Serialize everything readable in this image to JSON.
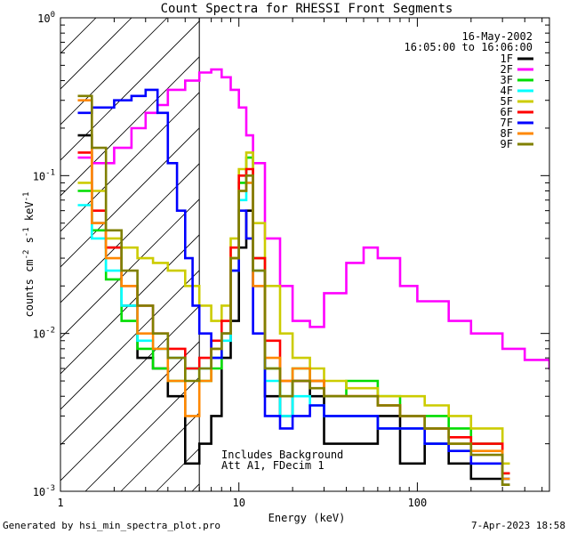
{
  "chart_data": {
    "type": "line",
    "title": "Count Spectra for RHESSI Front Segments",
    "xlabel": "Energy (keV)",
    "ylabel_parts": [
      "counts cm",
      "-2",
      " s",
      "-1",
      " keV",
      "-1"
    ],
    "x_scale": "log",
    "y_scale": "log",
    "xlim": [
      1,
      550
    ],
    "ylim": [
      0.001,
      1.0
    ],
    "x_ticks": [
      {
        "value": 1,
        "label": "1"
      },
      {
        "value": 10,
        "label": "10"
      },
      {
        "value": 100,
        "label": "100"
      }
    ],
    "y_ticks": [
      {
        "value": 1,
        "base": "10",
        "exp": "0"
      },
      {
        "value": 0.1,
        "base": "10",
        "exp": "-1"
      },
      {
        "value": 0.01,
        "base": "10",
        "exp": "-2"
      },
      {
        "value": 0.001,
        "base": "10",
        "exp": "-3"
      }
    ],
    "date": "16-May-2002",
    "time_range": "16:05:00 to 16:06:00",
    "attenuator_line_keV": 6,
    "annotations": [
      "Includes Background",
      "Att A1, FDecim 1"
    ],
    "series": [
      {
        "name": "1F",
        "color": "#000000",
        "values": [
          [
            1.25,
            0.18
          ],
          [
            1.5,
            0.05
          ],
          [
            1.8,
            0.035
          ],
          [
            2.2,
            0.015
          ],
          [
            2.7,
            0.007
          ],
          [
            3.3,
            0.006
          ],
          [
            4,
            0.004
          ],
          [
            5,
            0.0015
          ],
          [
            6,
            0.002
          ],
          [
            7,
            0.003
          ],
          [
            8,
            0.007
          ],
          [
            9,
            0.012
          ],
          [
            10,
            0.035
          ],
          [
            11,
            0.06
          ],
          [
            12,
            0.02
          ],
          [
            14,
            0.004
          ],
          [
            17,
            0.003
          ],
          [
            20,
            0.005
          ],
          [
            25,
            0.004
          ],
          [
            30,
            0.002
          ],
          [
            40,
            0.002
          ],
          [
            60,
            0.003
          ],
          [
            80,
            0.0015
          ],
          [
            110,
            0.002
          ],
          [
            150,
            0.0015
          ],
          [
            200,
            0.0012
          ],
          [
            300,
            0.0011
          ]
        ]
      },
      {
        "name": "2F",
        "color": "#ff00ff",
        "values": [
          [
            1.25,
            0.13
          ],
          [
            1.5,
            0.12
          ],
          [
            2.0,
            0.15
          ],
          [
            2.5,
            0.2
          ],
          [
            3,
            0.25
          ],
          [
            3.5,
            0.28
          ],
          [
            4,
            0.35
          ],
          [
            5,
            0.4
          ],
          [
            6,
            0.45
          ],
          [
            7,
            0.47
          ],
          [
            8,
            0.42
          ],
          [
            9,
            0.35
          ],
          [
            10,
            0.27
          ],
          [
            11,
            0.18
          ],
          [
            12,
            0.12
          ],
          [
            14,
            0.04
          ],
          [
            17,
            0.02
          ],
          [
            20,
            0.012
          ],
          [
            25,
            0.011
          ],
          [
            30,
            0.018
          ],
          [
            40,
            0.028
          ],
          [
            50,
            0.035
          ],
          [
            60,
            0.03
          ],
          [
            80,
            0.02
          ],
          [
            100,
            0.016
          ],
          [
            150,
            0.012
          ],
          [
            200,
            0.01
          ],
          [
            300,
            0.008
          ],
          [
            400,
            0.0068
          ],
          [
            550,
            0.006
          ]
        ]
      },
      {
        "name": "3F",
        "color": "#00dd00",
        "values": [
          [
            1.25,
            0.08
          ],
          [
            1.5,
            0.045
          ],
          [
            1.8,
            0.022
          ],
          [
            2.2,
            0.012
          ],
          [
            2.7,
            0.008
          ],
          [
            3.3,
            0.006
          ],
          [
            4,
            0.005
          ],
          [
            5,
            0.006
          ],
          [
            6,
            0.005
          ],
          [
            7,
            0.006
          ],
          [
            8,
            0.01
          ],
          [
            9,
            0.03
          ],
          [
            10,
            0.09
          ],
          [
            11,
            0.13
          ],
          [
            12,
            0.03
          ],
          [
            14,
            0.006
          ],
          [
            17,
            0.004
          ],
          [
            20,
            0.006
          ],
          [
            25,
            0.005
          ],
          [
            30,
            0.004
          ],
          [
            40,
            0.005
          ],
          [
            60,
            0.004
          ],
          [
            80,
            0.003
          ],
          [
            110,
            0.003
          ],
          [
            150,
            0.0025
          ],
          [
            200,
            0.002
          ],
          [
            300,
            0.0013
          ]
        ]
      },
      {
        "name": "4F",
        "color": "#00ffff",
        "values": [
          [
            1.25,
            0.065
          ],
          [
            1.5,
            0.04
          ],
          [
            1.8,
            0.025
          ],
          [
            2.2,
            0.015
          ],
          [
            2.7,
            0.009
          ],
          [
            3.3,
            0.008
          ],
          [
            4,
            0.007
          ],
          [
            5,
            0.006
          ],
          [
            6,
            0.006
          ],
          [
            7,
            0.007
          ],
          [
            8,
            0.009
          ],
          [
            9,
            0.025
          ],
          [
            10,
            0.07
          ],
          [
            11,
            0.09
          ],
          [
            12,
            0.025
          ],
          [
            14,
            0.005
          ],
          [
            17,
            0.003
          ],
          [
            20,
            0.004
          ],
          [
            25,
            0.0035
          ],
          [
            30,
            0.003
          ],
          [
            40,
            0.003
          ],
          [
            60,
            0.0025
          ],
          [
            80,
            0.0025
          ],
          [
            110,
            0.002
          ],
          [
            150,
            0.0018
          ],
          [
            200,
            0.0015
          ],
          [
            300,
            0.0012
          ]
        ]
      },
      {
        "name": "5F",
        "color": "#cccc00",
        "values": [
          [
            1.25,
            0.09
          ],
          [
            1.5,
            0.08
          ],
          [
            1.8,
            0.04
          ],
          [
            2.2,
            0.035
          ],
          [
            2.7,
            0.03
          ],
          [
            3.3,
            0.028
          ],
          [
            4,
            0.025
          ],
          [
            5,
            0.02
          ],
          [
            6,
            0.015
          ],
          [
            7,
            0.012
          ],
          [
            8,
            0.015
          ],
          [
            9,
            0.04
          ],
          [
            10,
            0.11
          ],
          [
            11,
            0.14
          ],
          [
            12,
            0.05
          ],
          [
            14,
            0.02
          ],
          [
            17,
            0.01
          ],
          [
            20,
            0.007
          ],
          [
            25,
            0.006
          ],
          [
            30,
            0.005
          ],
          [
            40,
            0.0045
          ],
          [
            60,
            0.004
          ],
          [
            80,
            0.004
          ],
          [
            110,
            0.0035
          ],
          [
            150,
            0.003
          ],
          [
            200,
            0.0025
          ],
          [
            300,
            0.0015
          ]
        ]
      },
      {
        "name": "6F",
        "color": "#ff0000",
        "values": [
          [
            1.25,
            0.14
          ],
          [
            1.5,
            0.06
          ],
          [
            1.8,
            0.035
          ],
          [
            2.2,
            0.02
          ],
          [
            2.7,
            0.015
          ],
          [
            3.3,
            0.01
          ],
          [
            4,
            0.008
          ],
          [
            5,
            0.006
          ],
          [
            6,
            0.007
          ],
          [
            7,
            0.009
          ],
          [
            8,
            0.012
          ],
          [
            9,
            0.035
          ],
          [
            10,
            0.1
          ],
          [
            11,
            0.11
          ],
          [
            12,
            0.03
          ],
          [
            14,
            0.009
          ],
          [
            17,
            0.005
          ],
          [
            20,
            0.005
          ],
          [
            25,
            0.005
          ],
          [
            30,
            0.004
          ],
          [
            40,
            0.004
          ],
          [
            60,
            0.0035
          ],
          [
            80,
            0.003
          ],
          [
            110,
            0.0025
          ],
          [
            150,
            0.0022
          ],
          [
            200,
            0.002
          ],
          [
            300,
            0.0013
          ]
        ]
      },
      {
        "name": "7F",
        "color": "#0000ff",
        "values": [
          [
            1.25,
            0.25
          ],
          [
            1.5,
            0.27
          ],
          [
            2,
            0.3
          ],
          [
            2.5,
            0.32
          ],
          [
            3,
            0.35
          ],
          [
            3.5,
            0.25
          ],
          [
            4,
            0.12
          ],
          [
            4.5,
            0.06
          ],
          [
            5,
            0.03
          ],
          [
            5.5,
            0.015
          ],
          [
            6,
            0.01
          ],
          [
            7,
            0.007
          ],
          [
            8,
            0.01
          ],
          [
            9,
            0.025
          ],
          [
            10,
            0.06
          ],
          [
            11,
            0.04
          ],
          [
            12,
            0.01
          ],
          [
            14,
            0.003
          ],
          [
            17,
            0.0025
          ],
          [
            20,
            0.003
          ],
          [
            25,
            0.0035
          ],
          [
            30,
            0.003
          ],
          [
            40,
            0.003
          ],
          [
            60,
            0.0025
          ],
          [
            80,
            0.0025
          ],
          [
            110,
            0.002
          ],
          [
            150,
            0.0018
          ],
          [
            200,
            0.0015
          ],
          [
            300,
            0.0012
          ]
        ]
      },
      {
        "name": "8F",
        "color": "#ff8800",
        "values": [
          [
            1.25,
            0.3
          ],
          [
            1.5,
            0.05
          ],
          [
            1.8,
            0.03
          ],
          [
            2.2,
            0.02
          ],
          [
            2.7,
            0.01
          ],
          [
            3.3,
            0.008
          ],
          [
            4,
            0.005
          ],
          [
            5,
            0.003
          ],
          [
            6,
            0.005
          ],
          [
            7,
            0.008
          ],
          [
            8,
            0.01
          ],
          [
            9,
            0.03
          ],
          [
            10,
            0.08
          ],
          [
            11,
            0.09
          ],
          [
            12,
            0.02
          ],
          [
            14,
            0.007
          ],
          [
            17,
            0.005
          ],
          [
            20,
            0.006
          ],
          [
            25,
            0.005
          ],
          [
            30,
            0.004
          ],
          [
            40,
            0.004
          ],
          [
            60,
            0.0035
          ],
          [
            80,
            0.003
          ],
          [
            110,
            0.0025
          ],
          [
            150,
            0.002
          ],
          [
            200,
            0.0018
          ],
          [
            300,
            0.0012
          ]
        ]
      },
      {
        "name": "9F",
        "color": "#808000",
        "values": [
          [
            1.25,
            0.32
          ],
          [
            1.5,
            0.15
          ],
          [
            1.8,
            0.045
          ],
          [
            2.2,
            0.025
          ],
          [
            2.7,
            0.015
          ],
          [
            3.3,
            0.01
          ],
          [
            4,
            0.007
          ],
          [
            5,
            0.005
          ],
          [
            6,
            0.006
          ],
          [
            7,
            0.008
          ],
          [
            8,
            0.01
          ],
          [
            9,
            0.03
          ],
          [
            10,
            0.08
          ],
          [
            11,
            0.1
          ],
          [
            12,
            0.025
          ],
          [
            14,
            0.006
          ],
          [
            17,
            0.004
          ],
          [
            20,
            0.005
          ],
          [
            25,
            0.0045
          ],
          [
            30,
            0.004
          ],
          [
            40,
            0.004
          ],
          [
            60,
            0.0035
          ],
          [
            80,
            0.003
          ],
          [
            110,
            0.0025
          ],
          [
            150,
            0.002
          ],
          [
            200,
            0.0017
          ],
          [
            300,
            0.0011
          ]
        ]
      }
    ]
  },
  "footer": {
    "left": "Generated by hsi_min_spectra_plot.pro",
    "right": "7-Apr-2023 18:58"
  }
}
